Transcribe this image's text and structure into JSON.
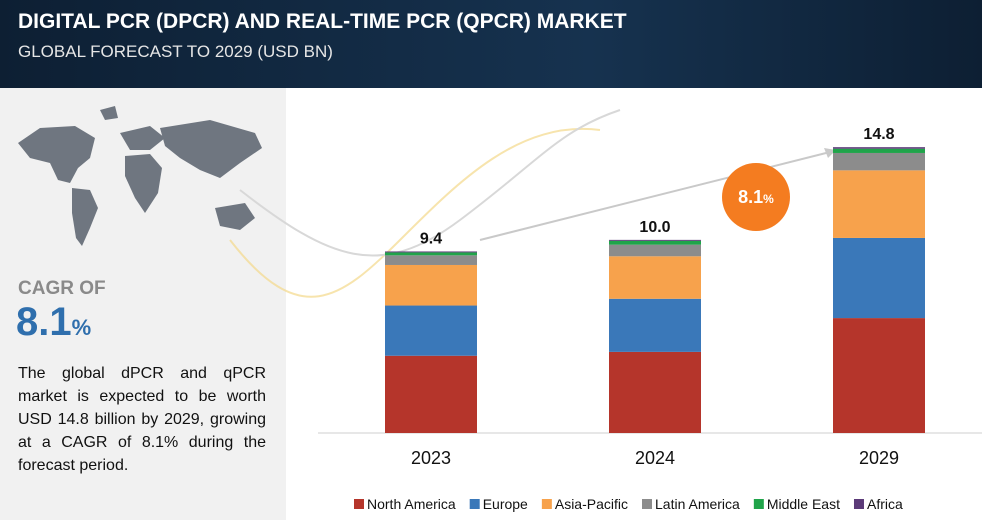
{
  "header": {
    "title": "DIGITAL PCR (DPCR) AND REAL-TIME PCR (QPCR) MARKET",
    "subtitle": "GLOBAL FORECAST TO 2029 (USD BN)"
  },
  "summary": {
    "cagr_label": "CAGR OF",
    "cagr_value": "8.1",
    "cagr_unit": "%",
    "text": "The global dPCR and qPCR market is expected to be worth USD 14.8 billion by 2029, growing at a CAGR of 8.1% during the forecast period."
  },
  "chart_data": {
    "type": "stacked-bar",
    "categories": [
      "2023",
      "2024",
      "2029"
    ],
    "series": [
      {
        "name": "North America",
        "color": "#b5352b",
        "values": [
          4.0,
          4.2,
          5.95
        ]
      },
      {
        "name": "Europe",
        "color": "#3a78b9",
        "values": [
          2.6,
          2.75,
          4.15
        ]
      },
      {
        "name": "Asia-Pacific",
        "color": "#f7a24c",
        "values": [
          2.1,
          2.2,
          3.5
        ]
      },
      {
        "name": "Latin America",
        "color": "#8c8c8c",
        "values": [
          0.5,
          0.6,
          0.9
        ]
      },
      {
        "name": "Middle East",
        "color": "#20a44a",
        "values": [
          0.15,
          0.2,
          0.22
        ]
      },
      {
        "name": "Africa",
        "color": "#5b3a78",
        "values": [
          0.05,
          0.05,
          0.08
        ]
      }
    ],
    "totals": [
      9.4,
      10,
      14.8
    ],
    "total_labels": [
      "9.4",
      "10.0",
      "14.8"
    ],
    "ylim": [
      0,
      16
    ]
  }
}
